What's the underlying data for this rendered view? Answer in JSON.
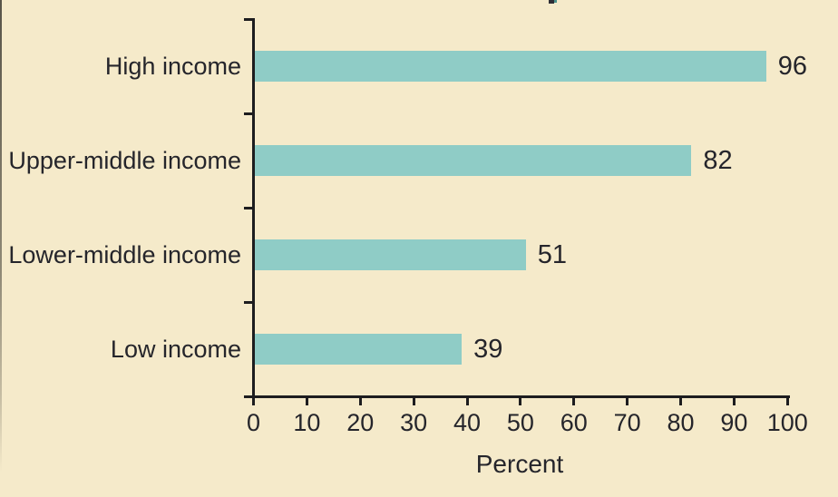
{
  "figure": {
    "background_color": "#f5eaca",
    "bar_color": "#8fccc6",
    "text_color": "#25252b",
    "axis_color": "#1d1d1f"
  },
  "chart_data": {
    "type": "bar",
    "orientation": "horizontal",
    "categories": [
      "High income",
      "Upper-middle income",
      "Lower-middle income",
      "Low income"
    ],
    "values": [
      96,
      82,
      51,
      39
    ],
    "value_labels": [
      "96",
      "82",
      "51",
      "39"
    ],
    "xlabel": "Percent",
    "x_ticks": [
      0,
      10,
      20,
      30,
      40,
      50,
      60,
      70,
      80,
      90,
      100
    ],
    "xlim": [
      0,
      100
    ],
    "grid": false,
    "legend": null,
    "bar_value_position": "right-of-bar",
    "category_boundary_ticks": true
  }
}
